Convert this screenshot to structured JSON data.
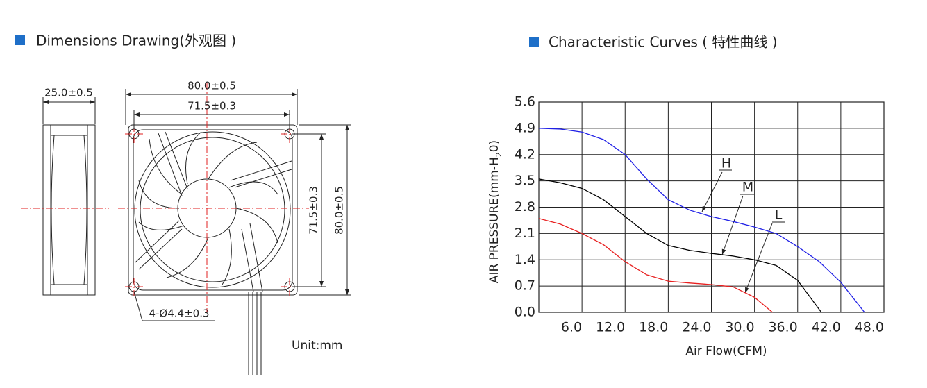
{
  "dimensions": {
    "title": "Dimensions Drawing(外观图 )",
    "side_width": "25.0±0.5",
    "outer_width": "80.0±0.5",
    "hole_spacing_h": "71.5±0.3",
    "hole_spacing_v": "71.5±0.3",
    "outer_height": "80.0±0.5",
    "holes": "4-Ø4.4±0.3",
    "unit": "Unit:mm"
  },
  "chart_data": {
    "type": "line",
    "title": "Characteristic Curves ( 特性曲线 )",
    "x_label": "Air Flow(CFM)",
    "y_label": [
      "AIR PRESSURE(mm-H",
      "2",
      "0)"
    ],
    "xlim": [
      0,
      48
    ],
    "ylim": [
      0,
      5.6
    ],
    "xticks": [
      {
        "value": 6,
        "label": "6.0"
      },
      {
        "value": 12,
        "label": "12.0"
      },
      {
        "value": 18,
        "label": "18.0"
      },
      {
        "value": 24,
        "label": "24.0"
      },
      {
        "value": 30,
        "label": "30.0"
      },
      {
        "value": 36,
        "label": "36.0"
      },
      {
        "value": 42,
        "label": "42.0"
      },
      {
        "value": 48,
        "label": "48.0"
      }
    ],
    "yticks": [
      {
        "value": 0,
        "label": "0.0"
      },
      0.7,
      1.4,
      2.1,
      2.8,
      3.5,
      4.2,
      4.9,
      5.6
    ],
    "grid": true,
    "series": [
      {
        "name": "H",
        "color": "#2020e6",
        "x": [
          0,
          3,
          6,
          9,
          12,
          15,
          18,
          21,
          24,
          27,
          30,
          33,
          36,
          39,
          42,
          45.3
        ],
        "values": [
          4.9,
          4.88,
          4.8,
          4.6,
          4.2,
          3.55,
          3.0,
          2.72,
          2.55,
          2.42,
          2.27,
          2.1,
          1.75,
          1.35,
          0.8,
          0
        ]
      },
      {
        "name": "M",
        "color": "#000000",
        "x": [
          0,
          3,
          6,
          9,
          12,
          15,
          18,
          21,
          24,
          27,
          30,
          33,
          36,
          39.3
        ],
        "values": [
          3.55,
          3.45,
          3.3,
          3.0,
          2.55,
          2.1,
          1.78,
          1.65,
          1.57,
          1.5,
          1.4,
          1.25,
          0.85,
          0
        ]
      },
      {
        "name": "L",
        "color": "#e82020",
        "x": [
          0,
          3,
          6,
          9,
          12,
          15,
          18,
          21,
          24,
          27,
          30,
          32.5
        ],
        "values": [
          2.5,
          2.35,
          2.1,
          1.8,
          1.35,
          1.0,
          0.83,
          0.78,
          0.74,
          0.68,
          0.4,
          0
        ]
      }
    ]
  }
}
